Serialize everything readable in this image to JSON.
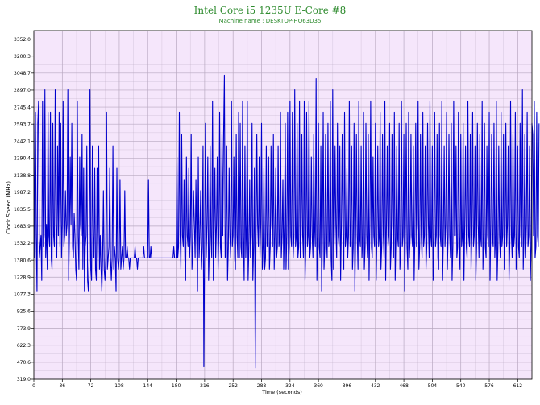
{
  "chart_data": {
    "type": "line",
    "title": "Intel Core i5 1235U E-Core #8",
    "subtitle": "Machine name : DESKTOP-HO63D35",
    "xlabel": "Time (seconds)",
    "ylabel": "Clock Speed (MHz)",
    "xlim": [
      0,
      630
    ],
    "ylim": [
      319.0,
      3428.0
    ],
    "x_ticks": [
      0,
      36,
      72,
      108,
      144,
      180,
      216,
      252,
      288,
      324,
      360,
      396,
      432,
      468,
      504,
      540,
      576,
      612
    ],
    "y_ticks": [
      "319.0",
      "470.6",
      "622.3",
      "773.9",
      "925.6",
      "1077.3",
      "1228.9",
      "1380.6",
      "1532.2",
      "1683.9",
      "1835.5",
      "1987.2",
      "2138.8",
      "2290.4",
      "2442.1",
      "2593.7",
      "2745.4",
      "2897.0",
      "3048.7",
      "3200.3",
      "3352.0"
    ],
    "grid": true,
    "colors": {
      "line": "#0000cc",
      "plot_bg": "#f5e6fb",
      "grid": "#b8a8c0",
      "title": "#2e8b2e"
    },
    "series": [
      {
        "name": "",
        "sample_interval_s": 1,
        "values": [
          2600,
          1400,
          2700,
          1600,
          1100,
          2600,
          2800,
          1400,
          1500,
          1600,
          1200,
          2800,
          1500,
          1600,
          2900,
          1400,
          1700,
          1300,
          2700,
          1600,
          1500,
          2700,
          1400,
          1300,
          2600,
          1600,
          1500,
          2900,
          1700,
          1400,
          2400,
          1600,
          2700,
          1500,
          2600,
          1400,
          1700,
          2800,
          1500,
          1600,
          2000,
          1600,
          1700,
          2900,
          1200,
          1600,
          2300,
          1700,
          2600,
          1500,
          1400,
          1800,
          1600,
          1300,
          1200,
          2800,
          1600,
          1300,
          2300,
          1700,
          1600,
          2500,
          1300,
          2200,
          1100,
          1500,
          1600,
          2400,
          1200,
          1100,
          1400,
          2900,
          1300,
          1200,
          2400,
          1600,
          1400,
          2200,
          1300,
          1200,
          2200,
          1400,
          2400,
          1300,
          1600,
          1300,
          1100,
          1400,
          2000,
          1300,
          1200,
          1400,
          2700,
          1300,
          1400,
          1500,
          2200,
          1400,
          1200,
          1400,
          2400,
          1300,
          1500,
          1400,
          1100,
          2200,
          1400,
          1300,
          1400,
          2100,
          1300,
          1400,
          1500,
          1300,
          1400,
          2000,
          1400,
          1400,
          1500,
          1400,
          1400,
          1300,
          1400,
          1400,
          1400,
          1400,
          1400,
          1400,
          1500,
          1400,
          1400,
          1300,
          1400,
          1400,
          1400,
          1400,
          1400,
          1400,
          1400,
          1500,
          1400,
          1400,
          1400,
          1400,
          1400,
          2100,
          1400,
          1400,
          1500,
          1400,
          1400,
          1400,
          1400,
          1400,
          1400,
          1400,
          1400,
          1400,
          1400,
          1400,
          1400,
          1400,
          1400,
          1400,
          1400,
          1400,
          1400,
          1400,
          1400,
          1400,
          1400,
          1400,
          1400,
          1400,
          1400,
          1400,
          1400,
          1500,
          1400,
          1400,
          1400,
          2300,
          1400,
          1500,
          2700,
          1600,
          1300,
          2500,
          1600,
          1500,
          2100,
          1400,
          1200,
          2300,
          1600,
          1500,
          2200,
          1400,
          1600,
          2500,
          1300,
          1500,
          2000,
          1700,
          1400,
          2100,
          1600,
          1100,
          2300,
          1400,
          1600,
          2000,
          1300,
          1500,
          2400,
          430,
          1500,
          2600,
          1400,
          1700,
          2300,
          1200,
          1500,
          2400,
          1600,
          1400,
          2800,
          1200,
          1700,
          2200,
          1400,
          1700,
          2300,
          1300,
          1600,
          2700,
          1500,
          1400,
          2500,
          1600,
          2500,
          3030,
          1400,
          1600,
          2400,
          1200,
          1500,
          2200,
          1600,
          1400,
          2800,
          1500,
          1600,
          2300,
          1400,
          1300,
          2500,
          1600,
          1400,
          2700,
          1400,
          2600,
          1500,
          1400,
          2800,
          1600,
          1200,
          2400,
          1400,
          1700,
          2800,
          1200,
          1500,
          2100,
          1400,
          1600,
          2600,
          1200,
          1500,
          2200,
          420,
          1600,
          2500,
          1700,
          1500,
          2300,
          1400,
          1700,
          2600,
          1300,
          1500,
          2200,
          1300,
          1400,
          2400,
          1500,
          1600,
          2300,
          1300,
          1500,
          2400,
          1700,
          1500,
          2500,
          1300,
          1600,
          2200,
          1400,
          1500,
          2400,
          1500,
          1600,
          2700,
          1400,
          1600,
          2100,
          1300,
          1700,
          2600,
          1300,
          1600,
          2700,
          1300,
          1500,
          2800,
          1600,
          1500,
          2700,
          1400,
          1600,
          2900,
          1500,
          1600,
          2600,
          1400,
          1500,
          2800,
          1400,
          1600,
          2500,
          1600,
          1400,
          2800,
          1200,
          1500,
          2700,
          1500,
          1600,
          2800,
          1400,
          1500,
          2300,
          1600,
          1400,
          2500,
          1700,
          1500,
          3000,
          1200,
          1600,
          2600,
          1500,
          1400,
          2400,
          1100,
          1600,
          2700,
          1300,
          1500,
          2500,
          1600,
          1400,
          2600,
          1500,
          1600,
          2800,
          1400,
          1200,
          2900,
          1300,
          1600,
          2400,
          1700,
          1400,
          2600,
          1600,
          1500,
          2400,
          1200,
          1700,
          2500,
          1600,
          1300,
          2700,
          1500,
          1600,
          2200,
          1400,
          1600,
          2800,
          1500,
          1700,
          2400,
          1300,
          1500,
          2600,
          1100,
          1600,
          2500,
          1600,
          1300,
          2800,
          1600,
          1500,
          2400,
          1400,
          1600,
          2700,
          1300,
          1500,
          2600,
          1600,
          1400,
          2500,
          1200,
          1700,
          2800,
          1500,
          1400,
          2300,
          1600,
          1500,
          2600,
          1200,
          1600,
          2400,
          1500,
          1600,
          2700,
          1300,
          1500,
          2500,
          1600,
          1400,
          2800,
          1200,
          1700,
          2400,
          1500,
          1600,
          2600,
          1300,
          1500,
          2500,
          1700,
          1400,
          2700,
          1200,
          1600,
          2400,
          1600,
          1500,
          2600,
          1300,
          1500,
          2800,
          1500,
          1600,
          2500,
          1100,
          1700,
          2600,
          1500,
          1300,
          2700,
          1400,
          1600,
          2500,
          1600,
          1500,
          2400,
          1200,
          1600,
          2600,
          1500,
          1700,
          2800,
          1300,
          1500,
          2500,
          1600,
          1400,
          2700,
          1500,
          1600,
          2400,
          1300,
          1500,
          2600,
          1700,
          1400,
          2800,
          1600,
          1500,
          2400,
          1200,
          1600,
          2700,
          1500,
          1600,
          2500,
          1400,
          1300,
          2600,
          1600,
          1500,
          2800,
          1200,
          1600,
          2400,
          1500,
          1700,
          2700,
          1300,
          1600,
          2500,
          1600,
          1400,
          2600,
          1200,
          1500,
          2800,
          1600,
          1600,
          2400,
          1400,
          1500,
          2700,
          1600,
          1300,
          2500,
          1500,
          1600,
          2600,
          1200,
          1700,
          2400,
          1500,
          1400,
          2800,
          1600,
          1500,
          2500,
          1300,
          1600,
          2700,
          1500,
          1600,
          2400,
          1200,
          1500,
          2600,
          1700,
          1400,
          2500,
          1600,
          1500,
          2800,
          1300,
          1600,
          2600,
          1500,
          1400,
          2400,
          1600,
          1500,
          2700,
          1200,
          1700,
          2500,
          1600,
          1500,
          2600,
          1400,
          1600,
          2800,
          1200,
          1500,
          2400,
          1600,
          1400,
          2700,
          1500,
          1600,
          2500,
          1300,
          1600,
          2600,
          1500,
          1700,
          2400,
          1200,
          1500,
          2800,
          1600,
          1400,
          2500,
          1500,
          1600,
          2700,
          1300,
          1600,
          2400,
          1500,
          1400,
          2600,
          1600,
          1500,
          2900,
          1300,
          1600,
          2500,
          1400,
          1700,
          2700,
          1500,
          1600,
          2400,
          1200,
          1500,
          2600,
          2500,
          1600,
          2800,
          1400,
          1500,
          2700,
          1600,
          1500,
          2600
        ]
      }
    ]
  }
}
